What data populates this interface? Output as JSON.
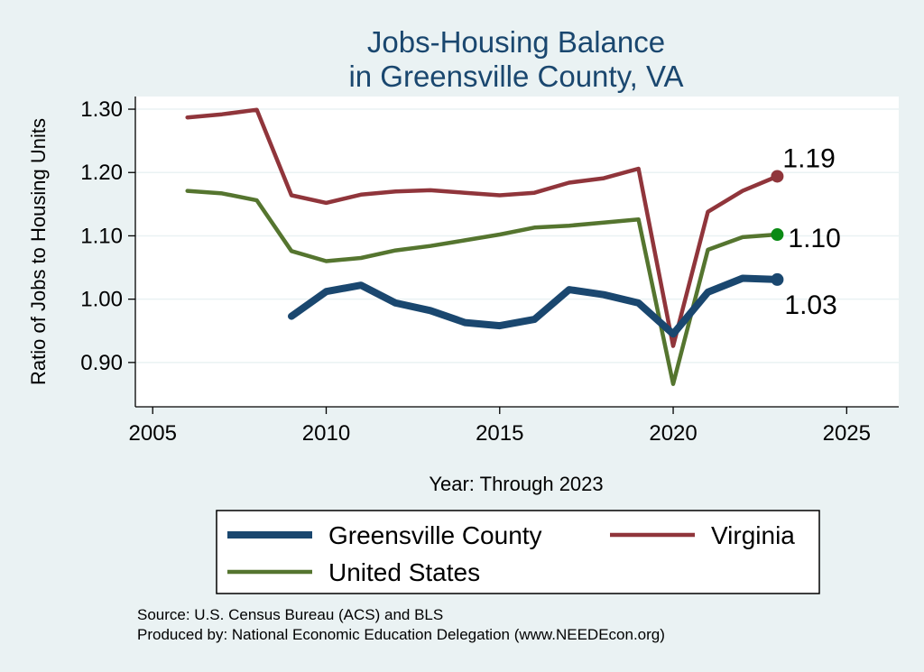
{
  "chart_data": {
    "type": "line",
    "title": [
      "Jobs-Housing Balance",
      "in Greensville County, VA"
    ],
    "xlabel": "Year: Through 2023",
    "ylabel": "Ratio of Jobs to Housing Units",
    "xlim": [
      2004.5,
      2026.5
    ],
    "ylim": [
      0.83,
      1.32
    ],
    "x_ticks": [
      2005,
      2010,
      2015,
      2020,
      2025
    ],
    "y_ticks": [
      0.9,
      1.0,
      1.1,
      1.2,
      1.3
    ],
    "y_tick_labels": [
      "0.90",
      "1.00",
      "1.10",
      "1.20",
      "1.30"
    ],
    "grid": "horizontal",
    "series": [
      {
        "name": "Greensville County",
        "color": "#1a476f",
        "x": [
          2009,
          2010,
          2011,
          2012,
          2013,
          2014,
          2015,
          2016,
          2017,
          2018,
          2019,
          2020,
          2021,
          2022,
          2023
        ],
        "values": [
          0.973,
          1.012,
          1.022,
          0.994,
          0.982,
          0.963,
          0.958,
          0.968,
          1.015,
          1.007,
          0.994,
          0.945,
          1.011,
          1.033,
          1.031
        ],
        "end_label": "1.03"
      },
      {
        "name": "Virginia",
        "color": "#90353b",
        "x": [
          2006,
          2007,
          2008,
          2009,
          2010,
          2011,
          2012,
          2013,
          2014,
          2015,
          2016,
          2017,
          2018,
          2019,
          2020,
          2021,
          2022,
          2023
        ],
        "values": [
          1.287,
          1.292,
          1.299,
          1.164,
          1.152,
          1.165,
          1.17,
          1.172,
          1.168,
          1.164,
          1.168,
          1.184,
          1.191,
          1.206,
          0.926,
          1.138,
          1.171,
          1.194
        ],
        "end_label": "1.19"
      },
      {
        "name": "United States",
        "color": "#55752f",
        "x": [
          2006,
          2007,
          2008,
          2009,
          2010,
          2011,
          2012,
          2013,
          2014,
          2015,
          2016,
          2017,
          2018,
          2019,
          2020,
          2021,
          2022,
          2023
        ],
        "values": [
          1.171,
          1.167,
          1.156,
          1.076,
          1.06,
          1.065,
          1.077,
          1.084,
          1.093,
          1.102,
          1.113,
          1.116,
          1.121,
          1.126,
          0.866,
          1.078,
          1.098,
          1.102
        ],
        "end_label": "1.10",
        "marker_color": "#0a8a14"
      }
    ],
    "legend": {
      "placement": "bottom",
      "entries": [
        "Greensville County",
        "Virginia",
        "United States"
      ]
    },
    "notes": [
      "Source: U.S. Census Bureau (ACS) and BLS",
      "Produced by: National Economic Education Delegation (www.NEEDEcon.org)"
    ]
  }
}
